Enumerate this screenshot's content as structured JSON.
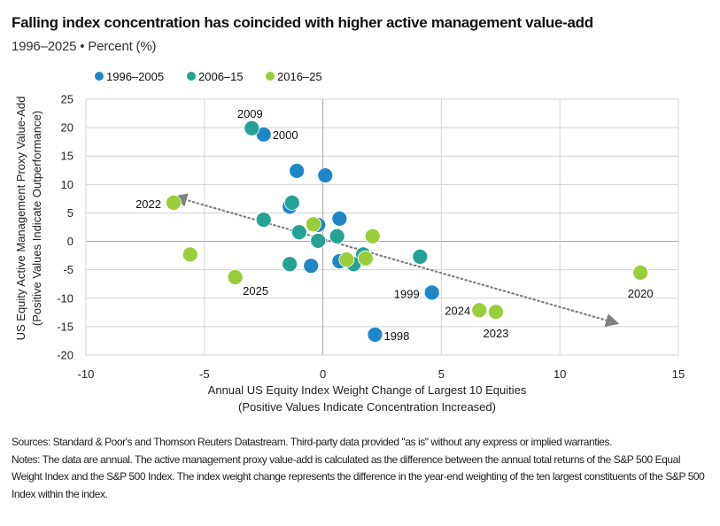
{
  "header": {
    "title": "Falling index concentration has coincided with higher active management value-add",
    "subtitle": "1996–2025 • Percent (%)"
  },
  "chart_data": {
    "type": "scatter",
    "xlabel": [
      "Annual US Equity Index Weight Change of Largest 10 Equities",
      "(Positive Values Indicate Concentration Increased)"
    ],
    "ylabel": [
      "US Equity Active Management Proxy Value-Add",
      "(Positive Values Indicate Outperformance)"
    ],
    "xlim": [
      -10,
      15
    ],
    "ylim": [
      -20,
      25
    ],
    "xticks": [
      -10,
      -5,
      0,
      5,
      10,
      15
    ],
    "yticks": [
      25,
      20,
      15,
      10,
      5,
      0,
      -5,
      -10,
      -15,
      -20
    ],
    "grid": true,
    "legend_position": "top",
    "series": [
      {
        "name": "1996–2005",
        "color": "#1f87c8",
        "points": [
          {
            "x": -2.5,
            "y": 18.8,
            "label": "2000"
          },
          {
            "x": -1.1,
            "y": 12.4
          },
          {
            "x": 0.1,
            "y": 11.6
          },
          {
            "x": -1.4,
            "y": 6.1
          },
          {
            "x": 0.7,
            "y": 4.0
          },
          {
            "x": -0.2,
            "y": 2.9
          },
          {
            "x": 0.7,
            "y": -3.5
          },
          {
            "x": -0.5,
            "y": -4.3
          },
          {
            "x": 4.6,
            "y": -9.0,
            "label": "1999"
          },
          {
            "x": 2.2,
            "y": -16.4,
            "label": "1998"
          }
        ]
      },
      {
        "name": "2006–15",
        "color": "#26a295",
        "points": [
          {
            "x": -3.0,
            "y": 19.9,
            "label": "2009"
          },
          {
            "x": -1.3,
            "y": 6.8
          },
          {
            "x": -2.5,
            "y": 3.8
          },
          {
            "x": -1.0,
            "y": 1.6
          },
          {
            "x": -0.2,
            "y": 0.1
          },
          {
            "x": 0.6,
            "y": 0.9
          },
          {
            "x": 1.7,
            "y": -2.3
          },
          {
            "x": 1.3,
            "y": -4.0
          },
          {
            "x": -1.4,
            "y": -4.0
          },
          {
            "x": 4.1,
            "y": -2.7
          }
        ]
      },
      {
        "name": "2016–25",
        "color": "#9acd3a",
        "points": [
          {
            "x": -6.3,
            "y": 6.8,
            "label": "2022"
          },
          {
            "x": -5.6,
            "y": -2.3
          },
          {
            "x": -3.7,
            "y": -6.3,
            "label": "2025"
          },
          {
            "x": -0.4,
            "y": 3.0
          },
          {
            "x": 2.1,
            "y": 0.9
          },
          {
            "x": 1.0,
            "y": -3.2
          },
          {
            "x": 1.8,
            "y": -3.0
          },
          {
            "x": 6.6,
            "y": -12.1,
            "label": "2024"
          },
          {
            "x": 7.3,
            "y": -12.4,
            "label": "2023"
          },
          {
            "x": 13.4,
            "y": -5.5,
            "label": "2020"
          }
        ]
      }
    ],
    "trendline": {
      "style": "dotted",
      "arrows": "both",
      "color": "#808080",
      "from": {
        "x": -6.2,
        "y": 7.8
      },
      "to": {
        "x": 12.4,
        "y": -14.4
      }
    }
  },
  "footnotes": {
    "sources": "Sources: Standard & Poor's and Thomson Reuters Datastream. Third-party data provided \"as is\" without any express or implied warranties.",
    "notes": "Notes: The data are annual. The active management proxy value-add is calculated as the difference between the annual total returns of the S&P 500 Equal Weight Index and the S&P 500 Index. The index weight change represents the difference in the year-end weighting of the ten largest constituents of the S&P 500 Index within the index."
  }
}
